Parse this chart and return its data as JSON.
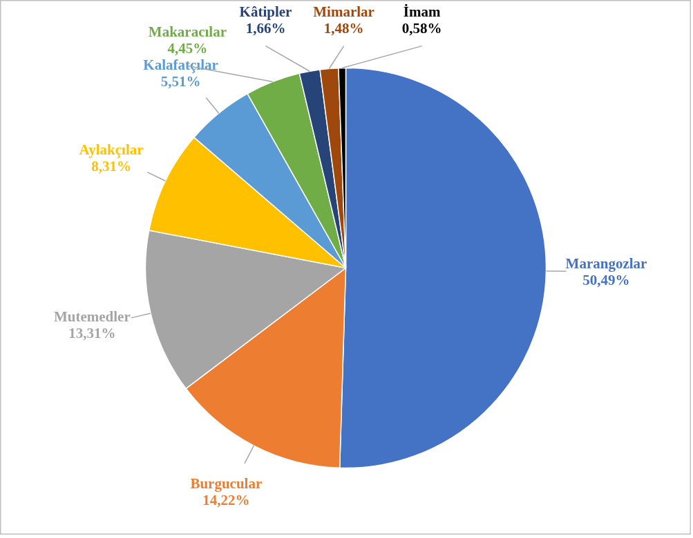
{
  "chart_data": {
    "type": "pie",
    "categories": [
      "Marangozlar",
      "Burgucular",
      "Mutemedler",
      "Aylakçılar",
      "Kalafatçılar",
      "Makaracılar",
      "Kâtipler",
      "Mimarlar",
      "İmam"
    ],
    "values": [
      50.49,
      14.22,
      13.31,
      8.31,
      5.51,
      4.45,
      1.66,
      1.48,
      0.58
    ],
    "value_labels": [
      "50,49%",
      "14,22%",
      "13,31%",
      "8,31%",
      "5,51%",
      "4,45%",
      "1,66%",
      "1,48%",
      "0,58%"
    ],
    "colors": [
      "#4472c4",
      "#ed7d31",
      "#a5a5a5",
      "#ffc000",
      "#5b9bd5",
      "#70ad47",
      "#264478",
      "#9e480e",
      "#000000"
    ]
  }
}
